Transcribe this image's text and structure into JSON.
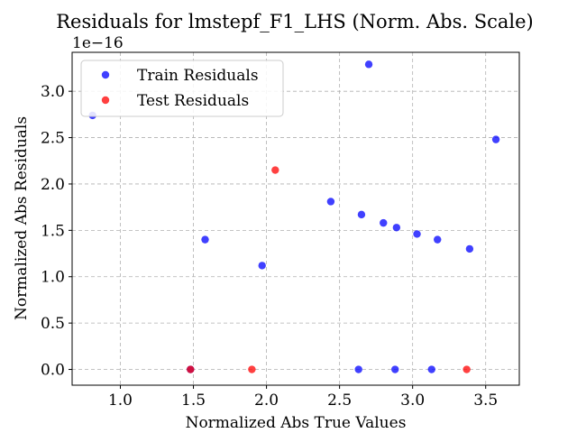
{
  "chart_data": {
    "type": "scatter",
    "title": "Residuals for lmstepf_F1_LHS (Norm. Abs. Scale)",
    "xlabel": "Normalized Abs True Values",
    "ylabel": "Normalized Abs Residuals",
    "y_offset_label": "1e−16",
    "xlim": [
      0.67,
      3.73
    ],
    "ylim": [
      -0.17,
      3.42
    ],
    "x_ticks": [
      1.0,
      1.5,
      2.0,
      2.5,
      3.0,
      3.5
    ],
    "x_tick_labels": [
      "1.0",
      "1.5",
      "2.0",
      "2.5",
      "3.0",
      "3.5"
    ],
    "y_ticks": [
      0.0,
      0.5,
      1.0,
      1.5,
      2.0,
      2.5,
      3.0
    ],
    "y_tick_labels": [
      "0.0",
      "0.5",
      "1.0",
      "1.5",
      "2.0",
      "2.5",
      "3.0"
    ],
    "grid": true,
    "legend_position": "upper-left",
    "series": [
      {
        "name": "Train Residuals",
        "color": "#0000ff",
        "points": [
          {
            "x": 0.81,
            "y": 2.74
          },
          {
            "x": 1.48,
            "y": 0.0
          },
          {
            "x": 1.58,
            "y": 1.4
          },
          {
            "x": 1.97,
            "y": 1.12
          },
          {
            "x": 2.44,
            "y": 1.81
          },
          {
            "x": 2.63,
            "y": 0.0
          },
          {
            "x": 2.65,
            "y": 1.67
          },
          {
            "x": 2.7,
            "y": 3.29
          },
          {
            "x": 2.8,
            "y": 1.58
          },
          {
            "x": 2.88,
            "y": 0.0
          },
          {
            "x": 2.89,
            "y": 1.53
          },
          {
            "x": 3.03,
            "y": 1.46
          },
          {
            "x": 3.13,
            "y": 0.0
          },
          {
            "x": 3.17,
            "y": 1.4
          },
          {
            "x": 3.39,
            "y": 1.3
          },
          {
            "x": 3.57,
            "y": 2.48
          }
        ]
      },
      {
        "name": "Test Residuals",
        "color": "#ff0000",
        "points": [
          {
            "x": 1.48,
            "y": 0.0
          },
          {
            "x": 1.9,
            "y": 0.0
          },
          {
            "x": 2.06,
            "y": 2.15
          },
          {
            "x": 3.37,
            "y": 0.0
          }
        ]
      }
    ]
  }
}
